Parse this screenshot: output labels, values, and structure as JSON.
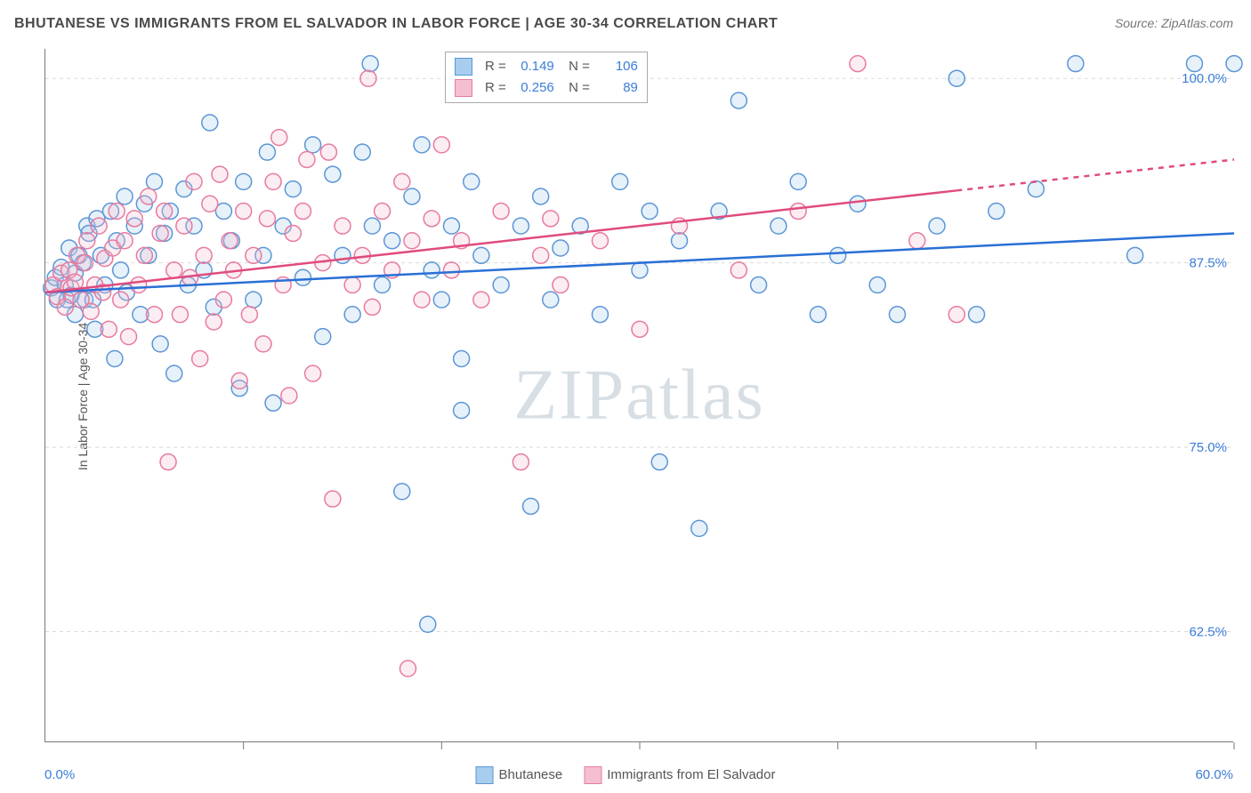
{
  "title": "BHUTANESE VS IMMIGRANTS FROM EL SALVADOR IN LABOR FORCE | AGE 30-34 CORRELATION CHART",
  "source": "Source: ZipAtlas.com",
  "watermark": "ZIPatlas",
  "y_axis_label": "In Labor Force | Age 30-34",
  "chart": {
    "type": "scatter",
    "background_color": "#ffffff",
    "grid_color": "#d9d9d9",
    "grid_dash": "4,4",
    "axis_color": "#777777",
    "xlim": [
      0,
      60
    ],
    "ylim": [
      55,
      102
    ],
    "x_ticks": [
      0,
      10,
      20,
      30,
      40,
      50,
      60
    ],
    "x_tick_labels_shown": {
      "0": "0.0%",
      "60": "60.0%"
    },
    "y_ticks": [
      62.5,
      75.0,
      87.5,
      100.0
    ],
    "y_tick_labels": [
      "62.5%",
      "75.0%",
      "87.5%",
      "100.0%"
    ],
    "y_label_color": "#3b7dd8",
    "marker_radius": 9,
    "marker_stroke_width": 1.5,
    "marker_fill_opacity": 0.28,
    "line_width": 2.5,
    "series": [
      {
        "name": "Bhutanese",
        "color_stroke": "#5b96d6",
        "color_fill": "#a9cdee",
        "line_color": "#2a6fd6",
        "R": 0.149,
        "N": 106,
        "trend": {
          "x1": 0,
          "y1": 85.5,
          "x2": 60,
          "y2": 89.5,
          "dashed_from": null
        },
        "points": [
          [
            0.3,
            85.8
          ],
          [
            0.5,
            86.5
          ],
          [
            0.6,
            85.0
          ],
          [
            0.8,
            87.2
          ],
          [
            1.0,
            86.0
          ],
          [
            1.1,
            85.0
          ],
          [
            1.2,
            88.5
          ],
          [
            1.3,
            85.3
          ],
          [
            1.5,
            86.8
          ],
          [
            1.5,
            84.0
          ],
          [
            1.7,
            88.0
          ],
          [
            1.9,
            87.5
          ],
          [
            2.0,
            85.0
          ],
          [
            2.1,
            90.0
          ],
          [
            2.2,
            89.5
          ],
          [
            2.4,
            85.0
          ],
          [
            2.5,
            83.0
          ],
          [
            2.6,
            90.5
          ],
          [
            2.8,
            88.0
          ],
          [
            3.0,
            86.0
          ],
          [
            3.3,
            91.0
          ],
          [
            3.5,
            81.0
          ],
          [
            3.6,
            89.0
          ],
          [
            3.8,
            87.0
          ],
          [
            4.0,
            92.0
          ],
          [
            4.1,
            85.5
          ],
          [
            4.5,
            90.0
          ],
          [
            4.8,
            84.0
          ],
          [
            5.0,
            91.5
          ],
          [
            5.2,
            88.0
          ],
          [
            5.5,
            93.0
          ],
          [
            5.8,
            82.0
          ],
          [
            6.0,
            89.5
          ],
          [
            6.3,
            91.0
          ],
          [
            6.5,
            80.0
          ],
          [
            7.0,
            92.5
          ],
          [
            7.2,
            86.0
          ],
          [
            7.5,
            90.0
          ],
          [
            8.0,
            87.0
          ],
          [
            8.3,
            97.0
          ],
          [
            8.5,
            84.5
          ],
          [
            9.0,
            91.0
          ],
          [
            9.4,
            89.0
          ],
          [
            9.8,
            79.0
          ],
          [
            10.0,
            93.0
          ],
          [
            10.5,
            85.0
          ],
          [
            11.0,
            88.0
          ],
          [
            11.2,
            95.0
          ],
          [
            11.5,
            78.0
          ],
          [
            12.0,
            90.0
          ],
          [
            12.5,
            92.5
          ],
          [
            13.0,
            86.5
          ],
          [
            13.5,
            95.5
          ],
          [
            14.0,
            82.5
          ],
          [
            14.5,
            93.5
          ],
          [
            15.0,
            88.0
          ],
          [
            15.5,
            84.0
          ],
          [
            16.0,
            95.0
          ],
          [
            16.4,
            101.0
          ],
          [
            16.5,
            90.0
          ],
          [
            17.0,
            86.0
          ],
          [
            17.5,
            89.0
          ],
          [
            18.0,
            72.0
          ],
          [
            18.5,
            92.0
          ],
          [
            19.0,
            95.5
          ],
          [
            19.3,
            63.0
          ],
          [
            19.5,
            87.0
          ],
          [
            20.0,
            85.0
          ],
          [
            20.5,
            90.0
          ],
          [
            21.0,
            81.0
          ],
          [
            21.0,
            77.5
          ],
          [
            21.5,
            93.0
          ],
          [
            22.0,
            88.0
          ],
          [
            23.0,
            86.0
          ],
          [
            24.0,
            90.0
          ],
          [
            24.5,
            71.0
          ],
          [
            25.0,
            92.0
          ],
          [
            25.5,
            85.0
          ],
          [
            26.0,
            88.5
          ],
          [
            27.0,
            90.0
          ],
          [
            28.0,
            84.0
          ],
          [
            29.0,
            93.0
          ],
          [
            30.0,
            87.0
          ],
          [
            30.5,
            91.0
          ],
          [
            31.0,
            74.0
          ],
          [
            32.0,
            89.0
          ],
          [
            33.0,
            69.5
          ],
          [
            34.0,
            91.0
          ],
          [
            35.0,
            98.5
          ],
          [
            36.0,
            86.0
          ],
          [
            37.0,
            90.0
          ],
          [
            38.0,
            93.0
          ],
          [
            39.0,
            84.0
          ],
          [
            40.0,
            88.0
          ],
          [
            41.0,
            91.5
          ],
          [
            42.0,
            86.0
          ],
          [
            43.0,
            84.0
          ],
          [
            45.0,
            90.0
          ],
          [
            46.0,
            100.0
          ],
          [
            47.0,
            84.0
          ],
          [
            48.0,
            91.0
          ],
          [
            50.0,
            92.5
          ],
          [
            52.0,
            101.0
          ],
          [
            55.0,
            88.0
          ],
          [
            58.0,
            101.0
          ],
          [
            60.0,
            101.0
          ]
        ]
      },
      {
        "name": "Immigrants from El Salvador",
        "color_stroke": "#e77ba0",
        "color_fill": "#f6bfd1",
        "line_color": "#e04b7e",
        "R": 0.256,
        "N": 89,
        "trend": {
          "x1": 0,
          "y1": 85.5,
          "x2": 60,
          "y2": 94.5,
          "dashed_from": 46
        },
        "points": [
          [
            0.4,
            86.0
          ],
          [
            0.6,
            85.2
          ],
          [
            0.8,
            86.8
          ],
          [
            1.0,
            84.5
          ],
          [
            1.2,
            87.0
          ],
          [
            1.3,
            85.8
          ],
          [
            1.5,
            86.2
          ],
          [
            1.6,
            88.0
          ],
          [
            1.8,
            85.0
          ],
          [
            2.0,
            87.5
          ],
          [
            2.1,
            89.0
          ],
          [
            2.3,
            84.2
          ],
          [
            2.5,
            86.0
          ],
          [
            2.7,
            90.0
          ],
          [
            2.9,
            85.5
          ],
          [
            3.0,
            87.8
          ],
          [
            3.2,
            83.0
          ],
          [
            3.4,
            88.5
          ],
          [
            3.6,
            91.0
          ],
          [
            3.8,
            85.0
          ],
          [
            4.0,
            89.0
          ],
          [
            4.2,
            82.5
          ],
          [
            4.5,
            90.5
          ],
          [
            4.7,
            86.0
          ],
          [
            5.0,
            88.0
          ],
          [
            5.2,
            92.0
          ],
          [
            5.5,
            84.0
          ],
          [
            5.8,
            89.5
          ],
          [
            6.0,
            91.0
          ],
          [
            6.2,
            74.0
          ],
          [
            6.5,
            87.0
          ],
          [
            6.8,
            84.0
          ],
          [
            7.0,
            90.0
          ],
          [
            7.3,
            86.5
          ],
          [
            7.5,
            93.0
          ],
          [
            7.8,
            81.0
          ],
          [
            8.0,
            88.0
          ],
          [
            8.3,
            91.5
          ],
          [
            8.5,
            83.5
          ],
          [
            8.8,
            93.5
          ],
          [
            9.0,
            85.0
          ],
          [
            9.3,
            89.0
          ],
          [
            9.5,
            87.0
          ],
          [
            9.8,
            79.5
          ],
          [
            10.0,
            91.0
          ],
          [
            10.3,
            84.0
          ],
          [
            10.5,
            88.0
          ],
          [
            11.0,
            82.0
          ],
          [
            11.2,
            90.5
          ],
          [
            11.5,
            93.0
          ],
          [
            11.8,
            96.0
          ],
          [
            12.0,
            86.0
          ],
          [
            12.3,
            78.5
          ],
          [
            12.5,
            89.5
          ],
          [
            13.0,
            91.0
          ],
          [
            13.2,
            94.5
          ],
          [
            13.5,
            80.0
          ],
          [
            14.0,
            87.5
          ],
          [
            14.3,
            95.0
          ],
          [
            14.5,
            71.5
          ],
          [
            15.0,
            90.0
          ],
          [
            15.5,
            86.0
          ],
          [
            16.0,
            88.0
          ],
          [
            16.3,
            100.0
          ],
          [
            16.5,
            84.5
          ],
          [
            17.0,
            91.0
          ],
          [
            17.5,
            87.0
          ],
          [
            18.0,
            93.0
          ],
          [
            18.3,
            60.0
          ],
          [
            18.5,
            89.0
          ],
          [
            19.0,
            85.0
          ],
          [
            19.5,
            90.5
          ],
          [
            20.0,
            95.5
          ],
          [
            20.5,
            87.0
          ],
          [
            21.0,
            89.0
          ],
          [
            22.0,
            85.0
          ],
          [
            23.0,
            91.0
          ],
          [
            24.0,
            74.0
          ],
          [
            25.0,
            88.0
          ],
          [
            25.5,
            90.5
          ],
          [
            26.0,
            86.0
          ],
          [
            28.0,
            89.0
          ],
          [
            30.0,
            83.0
          ],
          [
            32.0,
            90.0
          ],
          [
            35.0,
            87.0
          ],
          [
            38.0,
            91.0
          ],
          [
            41.0,
            101.0
          ],
          [
            44.0,
            89.0
          ],
          [
            46.0,
            84.0
          ]
        ]
      }
    ]
  },
  "top_legend": {
    "rows": [
      {
        "swatch_fill": "#a9cdee",
        "swatch_stroke": "#5b96d6",
        "R": "0.149",
        "N": "106"
      },
      {
        "swatch_fill": "#f6bfd1",
        "swatch_stroke": "#e77ba0",
        "R": "0.256",
        "N": "89"
      }
    ]
  },
  "bottom_legend": [
    {
      "swatch_fill": "#a9cdee",
      "swatch_stroke": "#5b96d6",
      "label": "Bhutanese"
    },
    {
      "swatch_fill": "#f6bfd1",
      "swatch_stroke": "#e77ba0",
      "label": "Immigrants from El Salvador"
    }
  ]
}
